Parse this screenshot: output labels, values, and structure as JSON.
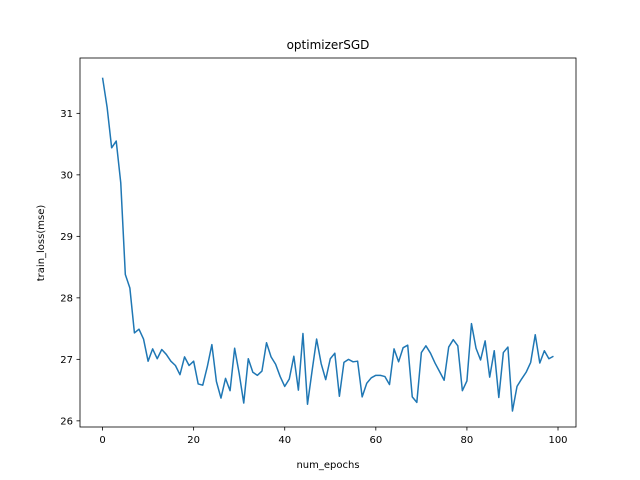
{
  "chart_data": {
    "type": "line",
    "title": "optimizerSGD",
    "xlabel": "num_epochs",
    "ylabel": "train_loss(mse)",
    "xlim": [
      -4.95,
      103.95
    ],
    "ylim": [
      25.9,
      31.9
    ],
    "xticks": [
      0,
      20,
      40,
      60,
      80,
      100
    ],
    "yticks": [
      26,
      27,
      28,
      29,
      30,
      31
    ],
    "grid": false,
    "line_color": "#1f77b4",
    "series": [
      {
        "x": [
          0,
          1,
          2,
          3,
          4,
          5,
          6,
          7,
          8,
          9,
          10,
          11,
          12,
          13,
          14,
          15,
          16,
          17,
          18,
          19,
          20,
          21,
          22,
          23,
          24,
          25,
          26,
          27,
          28,
          29,
          30,
          31,
          32,
          33,
          34,
          35,
          36,
          37,
          38,
          39,
          40,
          41,
          42,
          43,
          44,
          45,
          46,
          47,
          48,
          49,
          50,
          51,
          52,
          53,
          54,
          55,
          56,
          57,
          58,
          59,
          60,
          61,
          62,
          63,
          64,
          65,
          66,
          67,
          68,
          69,
          70,
          71,
          72,
          73,
          74,
          75,
          76,
          77,
          78,
          79,
          80,
          81,
          82,
          83,
          84,
          85,
          86,
          87,
          88,
          89,
          90,
          91,
          92,
          93,
          94,
          95,
          96,
          97,
          98,
          99
        ],
        "values": [
          31.58,
          31.1,
          30.44,
          30.55,
          29.87,
          28.38,
          28.16,
          27.43,
          27.49,
          27.33,
          26.97,
          27.17,
          27.01,
          27.16,
          27.08,
          26.97,
          26.9,
          26.75,
          27.04,
          26.9,
          26.97,
          26.6,
          26.58,
          26.88,
          27.24,
          26.64,
          26.37,
          26.69,
          26.49,
          27.18,
          26.77,
          26.29,
          27.01,
          26.79,
          26.74,
          26.81,
          27.27,
          27.04,
          26.92,
          26.72,
          26.56,
          26.68,
          27.05,
          26.5,
          27.42,
          26.27,
          26.81,
          27.33,
          26.93,
          26.67,
          27.01,
          27.1,
          26.4,
          26.95,
          27.0,
          26.96,
          26.97,
          26.39,
          26.61,
          26.7,
          26.74,
          26.74,
          26.72,
          26.59,
          27.17,
          26.96,
          27.19,
          27.23,
          26.39,
          26.3,
          27.11,
          27.22,
          27.1,
          26.94,
          26.8,
          26.66,
          27.2,
          27.32,
          27.22,
          26.49,
          26.65,
          27.58,
          27.18,
          26.99,
          27.3,
          26.71,
          27.14,
          26.38,
          27.11,
          27.2,
          26.16,
          26.56,
          26.68,
          26.79,
          26.95,
          27.4,
          26.94,
          27.14,
          27.01,
          27.05
        ]
      }
    ]
  }
}
